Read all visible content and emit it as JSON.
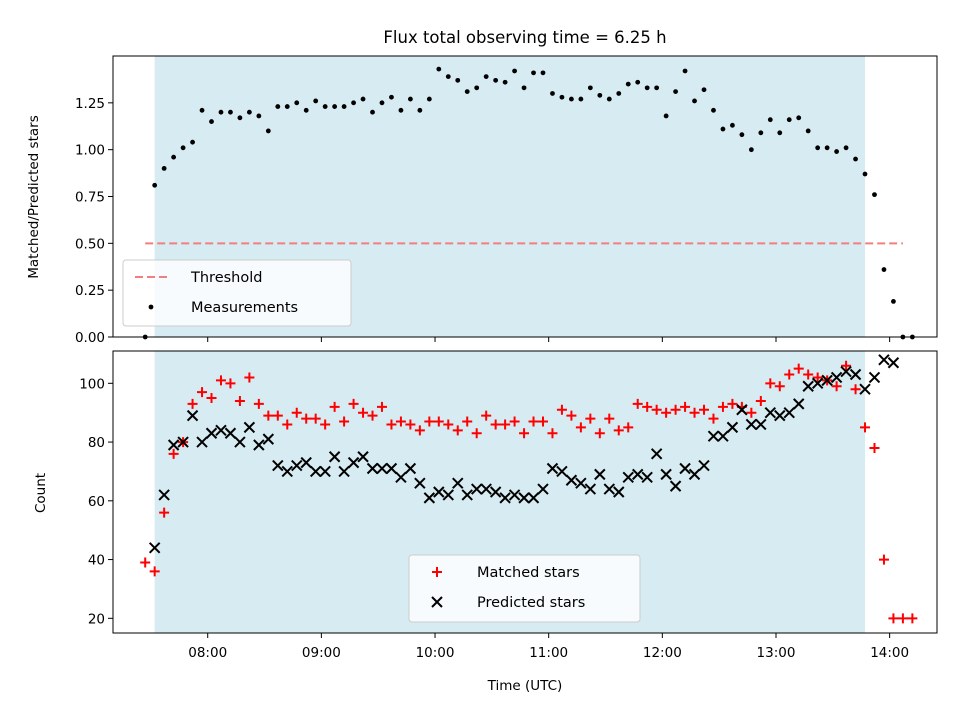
{
  "chart_data": [
    {
      "type": "scatter",
      "title": "Flux total observing time = 6.25 h",
      "xlabel": "",
      "ylabel": "Matched/Predicted stars",
      "xlim": [
        "07:10",
        "14:25"
      ],
      "ylim": [
        0,
        1.5
      ],
      "yticks": [
        "0.00",
        "0.25",
        "0.50",
        "0.75",
        "1.00",
        "1.25"
      ],
      "shaded_interval": [
        "07:32",
        "13:47"
      ],
      "threshold": {
        "name": "Threshold",
        "value": 0.5,
        "x_range": [
          "07:27",
          "14:07"
        ],
        "color": "#f08080"
      },
      "legend": {
        "placement": "lower-left",
        "entries": [
          "Threshold",
          "Measurements"
        ]
      },
      "series": [
        {
          "name": "Measurements",
          "color": "#000000",
          "points": [
            [
              "07:27",
              0.0
            ],
            [
              "07:32",
              0.81
            ],
            [
              "07:37",
              0.9
            ],
            [
              "07:42",
              0.96
            ],
            [
              "07:47",
              1.01
            ],
            [
              "07:52",
              1.04
            ],
            [
              "07:57",
              1.21
            ],
            [
              "08:02",
              1.15
            ],
            [
              "08:07",
              1.2
            ],
            [
              "08:12",
              1.2
            ],
            [
              "08:17",
              1.17
            ],
            [
              "08:22",
              1.2
            ],
            [
              "08:27",
              1.18
            ],
            [
              "08:32",
              1.1
            ],
            [
              "08:37",
              1.23
            ],
            [
              "08:42",
              1.23
            ],
            [
              "08:47",
              1.25
            ],
            [
              "08:52",
              1.21
            ],
            [
              "08:57",
              1.26
            ],
            [
              "09:02",
              1.23
            ],
            [
              "09:07",
              1.23
            ],
            [
              "09:12",
              1.23
            ],
            [
              "09:17",
              1.25
            ],
            [
              "09:22",
              1.27
            ],
            [
              "09:27",
              1.2
            ],
            [
              "09:32",
              1.25
            ],
            [
              "09:37",
              1.28
            ],
            [
              "09:42",
              1.21
            ],
            [
              "09:47",
              1.27
            ],
            [
              "09:52",
              1.21
            ],
            [
              "09:57",
              1.27
            ],
            [
              "10:02",
              1.43
            ],
            [
              "10:07",
              1.39
            ],
            [
              "10:12",
              1.37
            ],
            [
              "10:17",
              1.31
            ],
            [
              "10:22",
              1.33
            ],
            [
              "10:27",
              1.39
            ],
            [
              "10:32",
              1.37
            ],
            [
              "10:37",
              1.36
            ],
            [
              "10:42",
              1.42
            ],
            [
              "10:47",
              1.33
            ],
            [
              "10:52",
              1.41
            ],
            [
              "10:57",
              1.41
            ],
            [
              "11:02",
              1.3
            ],
            [
              "11:07",
              1.28
            ],
            [
              "11:12",
              1.27
            ],
            [
              "11:17",
              1.27
            ],
            [
              "11:22",
              1.33
            ],
            [
              "11:27",
              1.29
            ],
            [
              "11:32",
              1.27
            ],
            [
              "11:37",
              1.3
            ],
            [
              "11:42",
              1.35
            ],
            [
              "11:47",
              1.36
            ],
            [
              "11:52",
              1.33
            ],
            [
              "11:57",
              1.33
            ],
            [
              "12:02",
              1.18
            ],
            [
              "12:07",
              1.31
            ],
            [
              "12:12",
              1.42
            ],
            [
              "12:17",
              1.26
            ],
            [
              "12:22",
              1.32
            ],
            [
              "12:27",
              1.21
            ],
            [
              "12:32",
              1.11
            ],
            [
              "12:37",
              1.13
            ],
            [
              "12:42",
              1.08
            ],
            [
              "12:47",
              1.0
            ],
            [
              "12:52",
              1.09
            ],
            [
              "12:57",
              1.16
            ],
            [
              "13:02",
              1.09
            ],
            [
              "13:07",
              1.16
            ],
            [
              "13:12",
              1.17
            ],
            [
              "13:17",
              1.1
            ],
            [
              "13:22",
              1.01
            ],
            [
              "13:27",
              1.01
            ],
            [
              "13:32",
              0.99
            ],
            [
              "13:37",
              1.01
            ],
            [
              "13:42",
              0.95
            ],
            [
              "13:47",
              0.87
            ],
            [
              "13:52",
              0.76
            ],
            [
              "13:57",
              0.36
            ],
            [
              "14:02",
              0.19
            ],
            [
              "14:07",
              0.0
            ],
            [
              "14:12",
              0.0
            ]
          ]
        }
      ]
    },
    {
      "type": "scatter",
      "title": "",
      "xlabel": "Time (UTC)",
      "ylabel": "Count",
      "xlim": [
        "07:10",
        "14:25"
      ],
      "ylim": [
        15,
        111
      ],
      "yticks": [
        "20",
        "40",
        "60",
        "80",
        "100"
      ],
      "xticks": [
        "08:00",
        "09:00",
        "10:00",
        "11:00",
        "12:00",
        "13:00",
        "14:00"
      ],
      "shaded_interval": [
        "07:32",
        "13:47"
      ],
      "legend": {
        "placement": "lower-center",
        "entries": [
          "Matched stars",
          "Predicted stars"
        ]
      },
      "series": [
        {
          "name": "Matched stars",
          "marker": "+",
          "color": "#ff0000",
          "points": [
            [
              "07:27",
              39
            ],
            [
              "07:32",
              36
            ],
            [
              "07:37",
              56
            ],
            [
              "07:42",
              76
            ],
            [
              "07:47",
              80
            ],
            [
              "07:52",
              93
            ],
            [
              "07:57",
              97
            ],
            [
              "08:02",
              95
            ],
            [
              "08:07",
              101
            ],
            [
              "08:12",
              100
            ],
            [
              "08:17",
              94
            ],
            [
              "08:22",
              102
            ],
            [
              "08:27",
              93
            ],
            [
              "08:32",
              89
            ],
            [
              "08:37",
              89
            ],
            [
              "08:42",
              86
            ],
            [
              "08:47",
              90
            ],
            [
              "08:52",
              88
            ],
            [
              "08:57",
              88
            ],
            [
              "09:02",
              86
            ],
            [
              "09:07",
              92
            ],
            [
              "09:12",
              87
            ],
            [
              "09:17",
              93
            ],
            [
              "09:22",
              90
            ],
            [
              "09:27",
              89
            ],
            [
              "09:32",
              92
            ],
            [
              "09:37",
              86
            ],
            [
              "09:42",
              87
            ],
            [
              "09:47",
              86
            ],
            [
              "09:52",
              84
            ],
            [
              "09:57",
              87
            ],
            [
              "10:02",
              87
            ],
            [
              "10:07",
              86
            ],
            [
              "10:12",
              84
            ],
            [
              "10:17",
              87
            ],
            [
              "10:22",
              83
            ],
            [
              "10:27",
              89
            ],
            [
              "10:32",
              86
            ],
            [
              "10:37",
              86
            ],
            [
              "10:42",
              87
            ],
            [
              "10:47",
              83
            ],
            [
              "10:52",
              87
            ],
            [
              "10:57",
              87
            ],
            [
              "11:02",
              83
            ],
            [
              "11:07",
              91
            ],
            [
              "11:12",
              89
            ],
            [
              "11:17",
              85
            ],
            [
              "11:22",
              88
            ],
            [
              "11:27",
              83
            ],
            [
              "11:32",
              88
            ],
            [
              "11:37",
              84
            ],
            [
              "11:42",
              85
            ],
            [
              "11:47",
              93
            ],
            [
              "11:52",
              92
            ],
            [
              "11:57",
              91
            ],
            [
              "12:02",
              90
            ],
            [
              "12:07",
              91
            ],
            [
              "12:12",
              92
            ],
            [
              "12:17",
              90
            ],
            [
              "12:22",
              91
            ],
            [
              "12:27",
              88
            ],
            [
              "12:32",
              92
            ],
            [
              "12:37",
              93
            ],
            [
              "12:42",
              92
            ],
            [
              "12:47",
              90
            ],
            [
              "12:52",
              94
            ],
            [
              "12:57",
              100
            ],
            [
              "13:02",
              99
            ],
            [
              "13:07",
              103
            ],
            [
              "13:12",
              105
            ],
            [
              "13:17",
              103
            ],
            [
              "13:22",
              102
            ],
            [
              "13:27",
              101
            ],
            [
              "13:32",
              99
            ],
            [
              "13:37",
              106
            ],
            [
              "13:42",
              98
            ],
            [
              "13:47",
              85
            ],
            [
              "13:52",
              78
            ],
            [
              "13:57",
              40
            ],
            [
              "14:02",
              20
            ],
            [
              "14:07",
              20
            ],
            [
              "14:12",
              20
            ]
          ]
        },
        {
          "name": "Predicted stars",
          "marker": "x",
          "color": "#000000",
          "points": [
            [
              "07:32",
              44
            ],
            [
              "07:37",
              62
            ],
            [
              "07:42",
              79
            ],
            [
              "07:47",
              80
            ],
            [
              "07:52",
              89
            ],
            [
              "07:57",
              80
            ],
            [
              "08:02",
              83
            ],
            [
              "08:07",
              84
            ],
            [
              "08:12",
              83
            ],
            [
              "08:17",
              80
            ],
            [
              "08:22",
              85
            ],
            [
              "08:27",
              79
            ],
            [
              "08:32",
              81
            ],
            [
              "08:37",
              72
            ],
            [
              "08:42",
              70
            ],
            [
              "08:47",
              72
            ],
            [
              "08:52",
              73
            ],
            [
              "08:57",
              70
            ],
            [
              "09:02",
              70
            ],
            [
              "09:07",
              75
            ],
            [
              "09:12",
              70
            ],
            [
              "09:17",
              73
            ],
            [
              "09:22",
              75
            ],
            [
              "09:27",
              71
            ],
            [
              "09:32",
              71
            ],
            [
              "09:37",
              71
            ],
            [
              "09:42",
              68
            ],
            [
              "09:47",
              71
            ],
            [
              "09:52",
              66
            ],
            [
              "09:57",
              61
            ],
            [
              "10:02",
              63
            ],
            [
              "10:07",
              62
            ],
            [
              "10:12",
              66
            ],
            [
              "10:17",
              62
            ],
            [
              "10:22",
              64
            ],
            [
              "10:27",
              64
            ],
            [
              "10:32",
              63
            ],
            [
              "10:37",
              61
            ],
            [
              "10:42",
              62
            ],
            [
              "10:47",
              61
            ],
            [
              "10:52",
              61
            ],
            [
              "10:57",
              64
            ],
            [
              "11:02",
              71
            ],
            [
              "11:07",
              70
            ],
            [
              "11:12",
              67
            ],
            [
              "11:17",
              66
            ],
            [
              "11:22",
              64
            ],
            [
              "11:27",
              69
            ],
            [
              "11:32",
              64
            ],
            [
              "11:37",
              63
            ],
            [
              "11:42",
              68
            ],
            [
              "11:47",
              69
            ],
            [
              "11:52",
              68
            ],
            [
              "11:57",
              76
            ],
            [
              "12:02",
              69
            ],
            [
              "12:07",
              65
            ],
            [
              "12:12",
              71
            ],
            [
              "12:17",
              69
            ],
            [
              "12:22",
              72
            ],
            [
              "12:27",
              82
            ],
            [
              "12:32",
              82
            ],
            [
              "12:37",
              85
            ],
            [
              "12:42",
              91
            ],
            [
              "12:47",
              86
            ],
            [
              "12:52",
              86
            ],
            [
              "12:57",
              90
            ],
            [
              "13:02",
              89
            ],
            [
              "13:07",
              90
            ],
            [
              "13:12",
              93
            ],
            [
              "13:17",
              99
            ],
            [
              "13:22",
              100
            ],
            [
              "13:27",
              101
            ],
            [
              "13:32",
              102
            ],
            [
              "13:37",
              104
            ],
            [
              "13:42",
              103
            ],
            [
              "13:47",
              98
            ],
            [
              "13:52",
              102
            ],
            [
              "13:57",
              108
            ],
            [
              "14:02",
              107
            ]
          ]
        }
      ]
    }
  ]
}
